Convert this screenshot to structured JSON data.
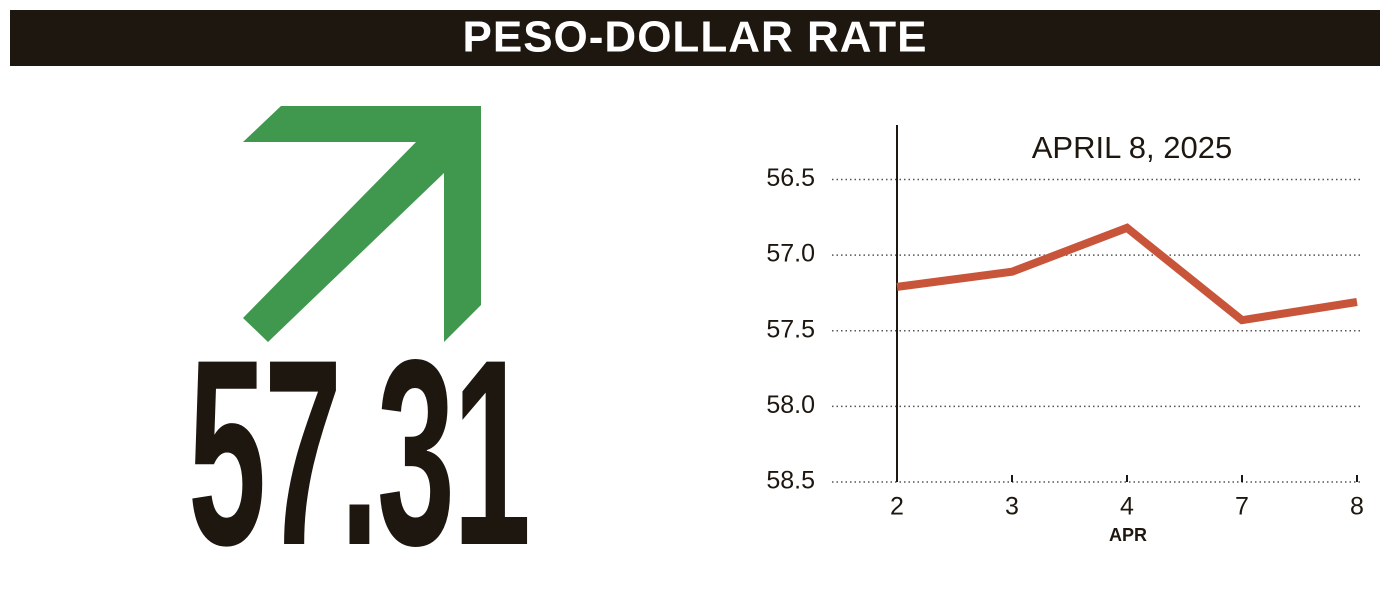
{
  "header": {
    "title": "PESO-DOLLAR RATE"
  },
  "headline_value": "57.31",
  "chart_data": {
    "type": "line",
    "title": "APRIL 8, 2025",
    "xlabel": "APR",
    "categories": [
      "2",
      "3",
      "4",
      "7",
      "8"
    ],
    "series": [
      {
        "name": "Peso-dollar rate",
        "color": "#c8553a",
        "values": [
          57.21,
          57.11,
          56.82,
          57.43,
          57.31
        ]
      }
    ],
    "ylim": [
      56.14,
      58.5
    ],
    "inverted": true,
    "yticks": [
      56.5,
      {
        "value": 57,
        "label": "57.0"
      },
      57.5,
      {
        "value": 58,
        "label": "58.0"
      },
      58.5
    ],
    "grid": true
  }
}
